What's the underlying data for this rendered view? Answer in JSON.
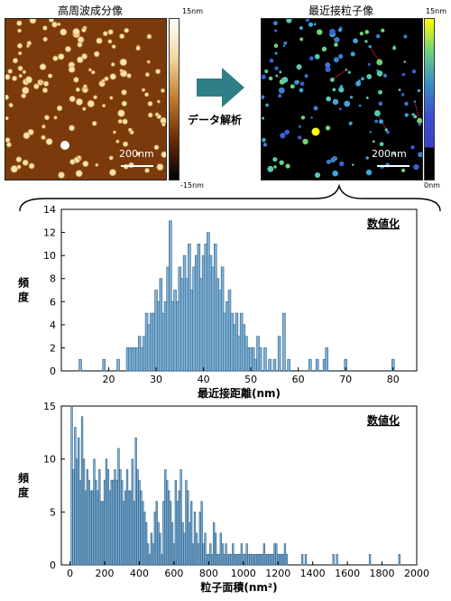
{
  "images": {
    "left": {
      "title": "高周波成分像",
      "scale_label": "200nm",
      "colorbar_max": "15nm",
      "colorbar_min": "-15nm"
    },
    "right": {
      "title": "最近接粒子像",
      "scale_label": "200nm",
      "colorbar_max": "15nm",
      "colorbar_min": "0nm"
    },
    "arrow_label": "データ解析",
    "arrow_color": "#2f7f86"
  },
  "chart_data": [
    {
      "type": "bar",
      "badge": "数値化",
      "ylabel": "頻度",
      "xlabel": "最近接距離(nm)",
      "xlim": [
        10,
        85
      ],
      "ylim": [
        0,
        14
      ],
      "xticks": [
        20,
        30,
        40,
        50,
        60,
        70,
        80
      ],
      "yticks": [
        0,
        2,
        4,
        6,
        8,
        10,
        12,
        14
      ],
      "bar_width": 0.55,
      "bar_color": "#7fb2d6",
      "x": [
        14,
        19,
        22,
        24,
        24.5,
        25,
        25.5,
        26,
        26.5,
        27,
        27.5,
        28,
        28.5,
        29,
        29.5,
        30,
        30.5,
        31,
        31.5,
        32,
        32.5,
        33,
        33.5,
        34,
        34.5,
        35,
        35.5,
        36,
        36.5,
        37,
        37.5,
        38,
        38.5,
        39,
        39.5,
        40,
        40.5,
        41,
        41.5,
        42,
        42.5,
        43,
        43.5,
        44,
        44.5,
        45,
        45.5,
        46,
        46.5,
        47,
        47.5,
        48,
        48.5,
        49,
        49.5,
        50,
        50.5,
        51,
        51.5,
        52,
        53,
        54,
        55,
        56,
        57,
        58,
        62.5,
        64,
        65.5,
        66,
        70,
        80
      ],
      "values": [
        1,
        1,
        1,
        2,
        2,
        2,
        2,
        2,
        3,
        2,
        3,
        5,
        4,
        5,
        5,
        7,
        6,
        8,
        5,
        6,
        9,
        13,
        6,
        7,
        6,
        9,
        8,
        10,
        8,
        11,
        7,
        9,
        10,
        11,
        8,
        10,
        11,
        12,
        10,
        9,
        11,
        8,
        7,
        9,
        5,
        6,
        7,
        5,
        4,
        5,
        3,
        5,
        4,
        3,
        2,
        2,
        2,
        1,
        3,
        2,
        2,
        1,
        1,
        3,
        5,
        1,
        1,
        1,
        1,
        2,
        1,
        1
      ]
    },
    {
      "type": "bar",
      "badge": "数値化",
      "ylabel": "頻度",
      "xlabel": "粒子面積(nm²)",
      "xlim": [
        -50,
        2000
      ],
      "ylim": [
        0,
        15
      ],
      "xticks": [
        0,
        200,
        400,
        600,
        800,
        1000,
        1200,
        1400,
        1600,
        1800,
        2000
      ],
      "yticks": [
        0,
        5,
        10,
        15
      ],
      "bar_width": 9,
      "bar_color": "#7fb2d6",
      "x": [
        10,
        20,
        30,
        40,
        50,
        60,
        70,
        80,
        90,
        100,
        110,
        120,
        130,
        140,
        150,
        160,
        170,
        180,
        190,
        200,
        210,
        220,
        230,
        240,
        250,
        260,
        270,
        280,
        290,
        300,
        310,
        320,
        330,
        340,
        350,
        360,
        370,
        380,
        390,
        400,
        410,
        420,
        430,
        440,
        450,
        460,
        470,
        480,
        490,
        500,
        510,
        520,
        530,
        540,
        550,
        560,
        570,
        580,
        590,
        600,
        610,
        620,
        630,
        640,
        650,
        660,
        670,
        680,
        690,
        700,
        710,
        720,
        730,
        740,
        750,
        760,
        770,
        780,
        790,
        800,
        810,
        820,
        830,
        840,
        850,
        860,
        870,
        880,
        890,
        900,
        910,
        920,
        930,
        940,
        950,
        960,
        970,
        980,
        990,
        1000,
        1010,
        1020,
        1030,
        1040,
        1050,
        1060,
        1070,
        1080,
        1090,
        1100,
        1110,
        1120,
        1130,
        1140,
        1150,
        1160,
        1170,
        1180,
        1190,
        1200,
        1210,
        1220,
        1230,
        1240,
        1250,
        1340,
        1360,
        1520,
        1540,
        1730,
        1900
      ],
      "values": [
        15,
        9,
        13,
        10,
        12,
        8,
        14,
        10,
        7,
        9,
        8,
        7,
        7,
        10,
        8,
        7,
        9,
        6,
        6,
        8,
        10,
        9,
        7,
        8,
        8,
        9,
        8,
        11,
        9,
        8,
        6,
        7,
        9,
        7,
        7,
        10,
        6,
        12,
        9,
        8,
        7,
        6,
        5,
        4,
        2,
        1,
        3,
        2,
        5,
        6,
        4,
        3,
        1,
        6,
        9,
        8,
        7,
        6,
        4,
        2,
        8,
        6,
        7,
        9,
        4,
        3,
        8,
        7,
        4,
        6,
        2,
        5,
        3,
        2,
        5,
        6,
        2,
        3,
        1,
        1,
        2,
        1,
        4,
        3,
        1,
        1,
        3,
        2,
        1,
        2,
        1,
        1,
        1,
        2,
        1,
        1,
        1,
        1,
        2,
        1,
        1,
        2,
        1,
        1,
        1,
        1,
        1,
        1,
        1,
        1,
        1,
        2,
        1,
        1,
        1,
        1,
        1,
        2,
        2,
        1,
        1,
        1,
        1,
        2,
        1,
        1,
        1,
        1,
        1,
        1,
        1
      ]
    }
  ]
}
